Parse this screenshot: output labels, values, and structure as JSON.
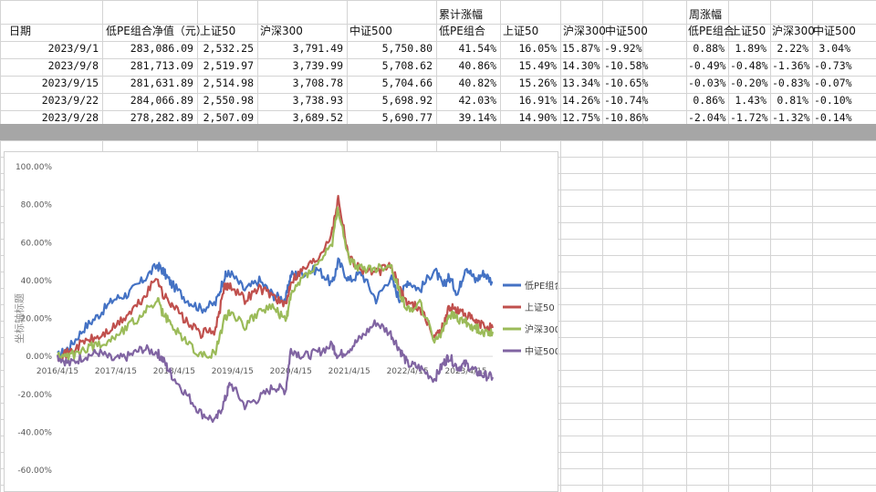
{
  "table": {
    "headers": {
      "date": "日期",
      "nav": "低PE组合净值（元）",
      "sz50": "上证50",
      "hs300": "沪深300",
      "zz500": "中证500",
      "cum_group": "累计涨幅",
      "cum_lowpe": "低PE组合",
      "cum_sz50": "上证50",
      "cum_hs300": "沪深300",
      "cum_zz500": "中证500",
      "week_group": "周涨幅",
      "week_lowpe": "低PE组合",
      "week_sz50": "上证50",
      "week_hs300": "沪深300",
      "week_zz500": "中证500"
    },
    "rows": [
      {
        "date": "2023/9/1",
        "nav": "283,086.09",
        "sz50": "2,532.25",
        "hs300": "3,791.49",
        "zz500": "5,750.80",
        "cum_lowpe": "41.54%",
        "cum_sz50": "16.05%",
        "cum_hs300": "15.87%",
        "cum_zz500": "-9.92%",
        "week_lowpe": "0.88%",
        "week_sz50": "1.89%",
        "week_hs300": "2.22%",
        "week_zz500": "3.04%"
      },
      {
        "date": "2023/9/8",
        "nav": "281,713.09",
        "sz50": "2,519.97",
        "hs300": "3,739.99",
        "zz500": "5,708.62",
        "cum_lowpe": "40.86%",
        "cum_sz50": "15.49%",
        "cum_hs300": "14.30%",
        "cum_zz500": "-10.58%",
        "week_lowpe": "-0.49%",
        "week_sz50": "-0.48%",
        "week_hs300": "-1.36%",
        "week_zz500": "-0.73%"
      },
      {
        "date": "2023/9/15",
        "nav": "281,631.89",
        "sz50": "2,514.98",
        "hs300": "3,708.78",
        "zz500": "5,704.66",
        "cum_lowpe": "40.82%",
        "cum_sz50": "15.26%",
        "cum_hs300": "13.34%",
        "cum_zz500": "-10.65%",
        "week_lowpe": "-0.03%",
        "week_sz50": "-0.20%",
        "week_hs300": "-0.83%",
        "week_zz500": "-0.07%"
      },
      {
        "date": "2023/9/22",
        "nav": "284,066.89",
        "sz50": "2,550.98",
        "hs300": "3,738.93",
        "zz500": "5,698.92",
        "cum_lowpe": "42.03%",
        "cum_sz50": "16.91%",
        "cum_hs300": "14.26%",
        "cum_zz500": "-10.74%",
        "week_lowpe": "0.86%",
        "week_sz50": "1.43%",
        "week_hs300": "0.81%",
        "week_zz500": "-0.10%"
      },
      {
        "date": "2023/9/28",
        "nav": "278,282.89",
        "sz50": "2,507.09",
        "hs300": "3,689.52",
        "zz500": "5,690.77",
        "cum_lowpe": "39.14%",
        "cum_sz50": "14.90%",
        "cum_hs300": "12.75%",
        "cum_zz500": "-10.86%",
        "week_lowpe": "-2.04%",
        "week_sz50": "-1.72%",
        "week_hs300": "-1.32%",
        "week_zz500": "-0.14%"
      }
    ]
  },
  "chart_data": {
    "type": "line",
    "title": "",
    "ylabel": "坐标轴标题",
    "xlabel": "",
    "ylim": [
      -0.6,
      1.0
    ],
    "y_ticks": [
      "-60.00%",
      "-40.00%",
      "-20.00%",
      "0.00%",
      "20.00%",
      "40.00%",
      "60.00%",
      "80.00%",
      "100.00%"
    ],
    "x_ticks": [
      "2016/4/15",
      "2017/4/15",
      "2018/4/15",
      "2019/4/15",
      "2020/4/15",
      "2021/4/15",
      "2022/4/15",
      "2023/4/15"
    ],
    "x_tick_years": [
      2016.29,
      2017.29,
      2018.29,
      2019.29,
      2020.29,
      2021.29,
      2022.29,
      2023.29
    ],
    "xlim": [
      2016.29,
      2023.75
    ],
    "legend_position": "right",
    "series": [
      {
        "name": "低PE组合",
        "color": "#4472c4",
        "x": [
          2016.29,
          2016.5,
          2016.75,
          2017.0,
          2017.25,
          2017.5,
          2017.75,
          2018.0,
          2018.1,
          2018.25,
          2018.5,
          2018.75,
          2019.0,
          2019.15,
          2019.25,
          2019.5,
          2019.75,
          2020.0,
          2020.2,
          2020.29,
          2020.5,
          2020.75,
          2021.0,
          2021.1,
          2021.29,
          2021.5,
          2021.75,
          2022.0,
          2022.15,
          2022.29,
          2022.5,
          2022.75,
          2022.9,
          2023.0,
          2023.15,
          2023.29,
          2023.45,
          2023.6,
          2023.75
        ],
        "y": [
          0.0,
          0.05,
          0.15,
          0.22,
          0.3,
          0.33,
          0.4,
          0.48,
          0.45,
          0.38,
          0.3,
          0.25,
          0.28,
          0.42,
          0.44,
          0.35,
          0.4,
          0.32,
          0.3,
          0.43,
          0.44,
          0.46,
          0.38,
          0.5,
          0.4,
          0.44,
          0.3,
          0.42,
          0.3,
          0.4,
          0.35,
          0.46,
          0.37,
          0.42,
          0.33,
          0.48,
          0.4,
          0.44,
          0.39
        ]
      },
      {
        "name": "上证50",
        "color": "#c0504d",
        "x": [
          2016.29,
          2016.5,
          2016.75,
          2017.0,
          2017.25,
          2017.5,
          2017.75,
          2018.0,
          2018.1,
          2018.25,
          2018.5,
          2018.75,
          2019.0,
          2019.15,
          2019.25,
          2019.5,
          2019.75,
          2020.0,
          2020.2,
          2020.29,
          2020.5,
          2020.75,
          2021.0,
          2021.1,
          2021.29,
          2021.5,
          2021.75,
          2022.0,
          2022.15,
          2022.29,
          2022.5,
          2022.75,
          2022.9,
          2023.0,
          2023.15,
          2023.29,
          2023.45,
          2023.6,
          2023.75
        ],
        "y": [
          0.0,
          0.02,
          0.08,
          0.1,
          0.15,
          0.22,
          0.3,
          0.42,
          0.32,
          0.28,
          0.18,
          0.12,
          0.14,
          0.36,
          0.38,
          0.3,
          0.36,
          0.32,
          0.26,
          0.4,
          0.46,
          0.52,
          0.66,
          0.84,
          0.52,
          0.46,
          0.44,
          0.48,
          0.36,
          0.28,
          0.26,
          0.1,
          0.16,
          0.26,
          0.24,
          0.22,
          0.18,
          0.16,
          0.15
        ]
      },
      {
        "name": "沪深300",
        "color": "#9bbb59",
        "x": [
          2016.29,
          2016.5,
          2016.75,
          2017.0,
          2017.25,
          2017.5,
          2017.75,
          2018.0,
          2018.1,
          2018.25,
          2018.5,
          2018.75,
          2019.0,
          2019.15,
          2019.25,
          2019.5,
          2019.75,
          2020.0,
          2020.2,
          2020.29,
          2020.5,
          2020.75,
          2021.0,
          2021.1,
          2021.29,
          2021.5,
          2021.75,
          2022.0,
          2022.15,
          2022.29,
          2022.5,
          2022.75,
          2022.9,
          2023.0,
          2023.15,
          2023.29,
          2023.45,
          2023.6,
          2023.75
        ],
        "y": [
          0.0,
          0.0,
          0.04,
          0.06,
          0.1,
          0.16,
          0.22,
          0.3,
          0.22,
          0.16,
          0.08,
          0.0,
          0.02,
          0.2,
          0.24,
          0.16,
          0.24,
          0.26,
          0.18,
          0.32,
          0.42,
          0.48,
          0.6,
          0.78,
          0.5,
          0.46,
          0.46,
          0.48,
          0.34,
          0.24,
          0.28,
          0.08,
          0.14,
          0.22,
          0.2,
          0.18,
          0.15,
          0.13,
          0.13
        ]
      },
      {
        "name": "中证500",
        "color": "#8064a2",
        "x": [
          2016.29,
          2016.5,
          2016.75,
          2017.0,
          2017.25,
          2017.5,
          2017.75,
          2018.0,
          2018.1,
          2018.25,
          2018.5,
          2018.75,
          2019.0,
          2019.15,
          2019.25,
          2019.5,
          2019.75,
          2020.0,
          2020.2,
          2020.29,
          2020.5,
          2020.75,
          2021.0,
          2021.1,
          2021.29,
          2021.5,
          2021.75,
          2022.0,
          2022.15,
          2022.29,
          2022.5,
          2022.75,
          2022.9,
          2023.0,
          2023.15,
          2023.29,
          2023.45,
          2023.6,
          2023.75
        ],
        "y": [
          0.0,
          -0.04,
          0.0,
          0.02,
          -0.02,
          0.0,
          0.04,
          0.02,
          -0.02,
          -0.1,
          -0.2,
          -0.3,
          -0.34,
          -0.24,
          -0.14,
          -0.26,
          -0.22,
          -0.16,
          -0.18,
          0.04,
          0.0,
          0.02,
          0.06,
          0.0,
          0.04,
          0.1,
          0.18,
          0.12,
          0.04,
          -0.04,
          -0.06,
          -0.12,
          -0.04,
          0.0,
          -0.06,
          -0.04,
          -0.08,
          -0.1,
          -0.11
        ]
      }
    ]
  }
}
